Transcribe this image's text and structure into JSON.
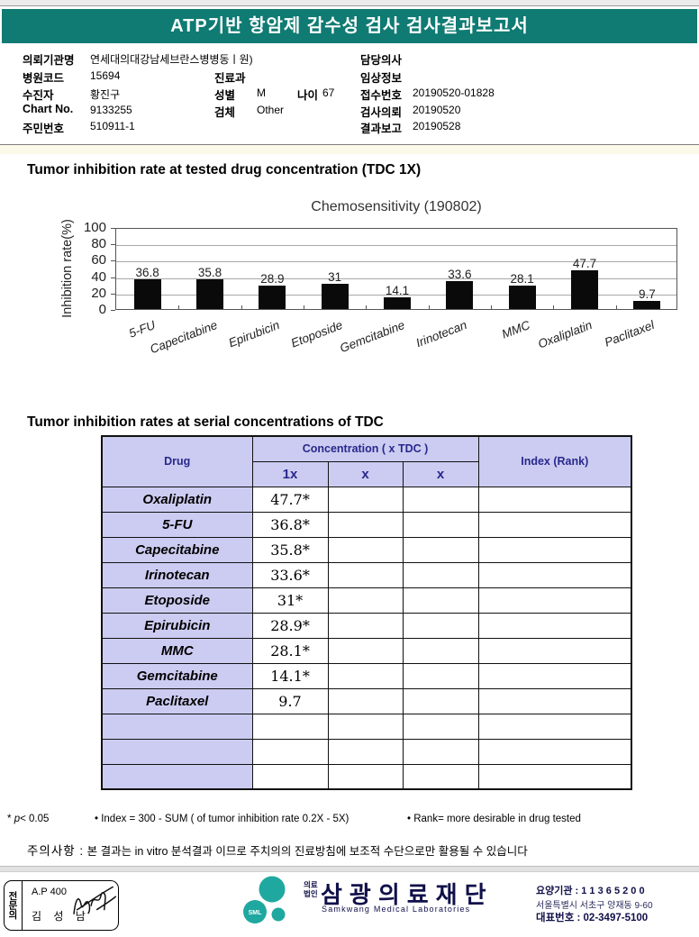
{
  "header": {
    "title": "ATP기반 항암제 감수성 검사 검사결과보고서"
  },
  "patient": {
    "org_label": "의뢰기관명",
    "org": "연세대의대강남세브란스병병동ㅣ원)",
    "hospital_code_label": "병원코드",
    "hospital_code": "15694",
    "dept_label": "진료과",
    "dept": "",
    "patient_label": "수진자",
    "patient_name": "황진구",
    "sex_label": "성별",
    "sex": "M",
    "age_label": "나이",
    "age": "67",
    "chart_no_label": "Chart No.",
    "chart_no": "9133255",
    "specimen_label": "검체",
    "specimen": "Other",
    "resident_label": "주민번호",
    "resident_no": "510911-1",
    "doctor_label": "담당의사",
    "doctor": "",
    "clinical_label": "임상정보",
    "clinical": "",
    "receipt_label": "접수번호",
    "receipt_no": "20190520-01828",
    "request_label": "검사의뢰",
    "request_date": "20190520",
    "report_label": "결과보고",
    "report_date": "20190528"
  },
  "section1": {
    "title": "Tumor inhibition rate at tested drug concentration (TDC 1X)"
  },
  "chart_data": {
    "type": "bar",
    "title": "Chemosensitivity (190802)",
    "categories": [
      "5-FU",
      "Capecitabine",
      "Epirubicin",
      "Etoposide",
      "Gemcitabine",
      "Irinotecan",
      "MMC",
      "Oxaliplatin",
      "Paclitaxel"
    ],
    "values": [
      36.8,
      35.8,
      28.9,
      31,
      14.1,
      33.6,
      28.1,
      47.7,
      9.7
    ],
    "value_labels": [
      "36.8",
      "35.8",
      "28.9",
      "31",
      "14.1",
      "33.6",
      "28.1",
      "47.7",
      "9.7"
    ],
    "xlabel": "",
    "ylabel": "Inhibition rate(%)",
    "ylim": [
      0,
      100
    ],
    "yticks": [
      0,
      20,
      40,
      60,
      80,
      100
    ],
    "grid": true,
    "legend_position": "none",
    "bar_color": "#0a0a0a"
  },
  "section2": {
    "title": "Tumor inhibition rates at serial concentrations of TDC"
  },
  "table": {
    "col_drug": "Drug",
    "col_concentration": "Concentration ( x TDC )",
    "col_index": "Index (Rank)",
    "sub_cols": [
      "1x",
      "x",
      "x"
    ],
    "rows": [
      {
        "drug": "Oxaliplatin",
        "c1x": "47.7*",
        "cx2": "",
        "cx3": "",
        "index": ""
      },
      {
        "drug": "5-FU",
        "c1x": "36.8*",
        "cx2": "",
        "cx3": "",
        "index": ""
      },
      {
        "drug": "Capecitabine",
        "c1x": "35.8*",
        "cx2": "",
        "cx3": "",
        "index": ""
      },
      {
        "drug": "Irinotecan",
        "c1x": "33.6*",
        "cx2": "",
        "cx3": "",
        "index": ""
      },
      {
        "drug": "Etoposide",
        "c1x": "31*",
        "cx2": "",
        "cx3": "",
        "index": ""
      },
      {
        "drug": "Epirubicin",
        "c1x": "28.9*",
        "cx2": "",
        "cx3": "",
        "index": ""
      },
      {
        "drug": "MMC",
        "c1x": "28.1*",
        "cx2": "",
        "cx3": "",
        "index": ""
      },
      {
        "drug": "Gemcitabine",
        "c1x": "14.1*",
        "cx2": "",
        "cx3": "",
        "index": ""
      },
      {
        "drug": "Paclitaxel",
        "c1x": "9.7",
        "cx2": "",
        "cx3": "",
        "index": ""
      },
      {
        "drug": "",
        "c1x": "",
        "cx2": "",
        "cx3": "",
        "index": ""
      },
      {
        "drug": "",
        "c1x": "",
        "cx2": "",
        "cx3": "",
        "index": ""
      },
      {
        "drug": "",
        "c1x": "",
        "cx2": "",
        "cx3": "",
        "index": ""
      }
    ]
  },
  "footnotes": {
    "p_star": "*",
    "p_var": "p",
    "p_rest": "< 0.05",
    "index_note": "• Index = 300 - SUM ( of tumor inhibition rate 0.2X  -  5X)",
    "rank_note": "• Rank= more desirable in drug tested",
    "caution_label": "주의사항 :",
    "caution_text": "본 결과는 in vitro 분석결과 이므로 주치의의 진료방침에 보조적 수단으로만 활용될 수 있습니다"
  },
  "footer": {
    "stamp_side": "전문의",
    "stamp_line1": "A.P 400",
    "stamp_line2": "김 성 남",
    "logo_text": "SML",
    "org_type_line1": "의료",
    "org_type_line2": "법인",
    "org_name": "삼광의료재단",
    "org_name_en": "Samkwang Medical Laboratories",
    "care_org": "요양기관 : 1 1 3 6 5 2 0 0",
    "address": "서울특별시 서초구 양재동 9-60",
    "phone": "대표번호 : 02-3497-5100"
  },
  "colors": {
    "header_bg": "#0f7b73",
    "table_header_bg": "#ccccf2",
    "table_header_text": "#28288c",
    "logo_teal": "#1fa8a0",
    "bar": "#0a0a0a"
  }
}
